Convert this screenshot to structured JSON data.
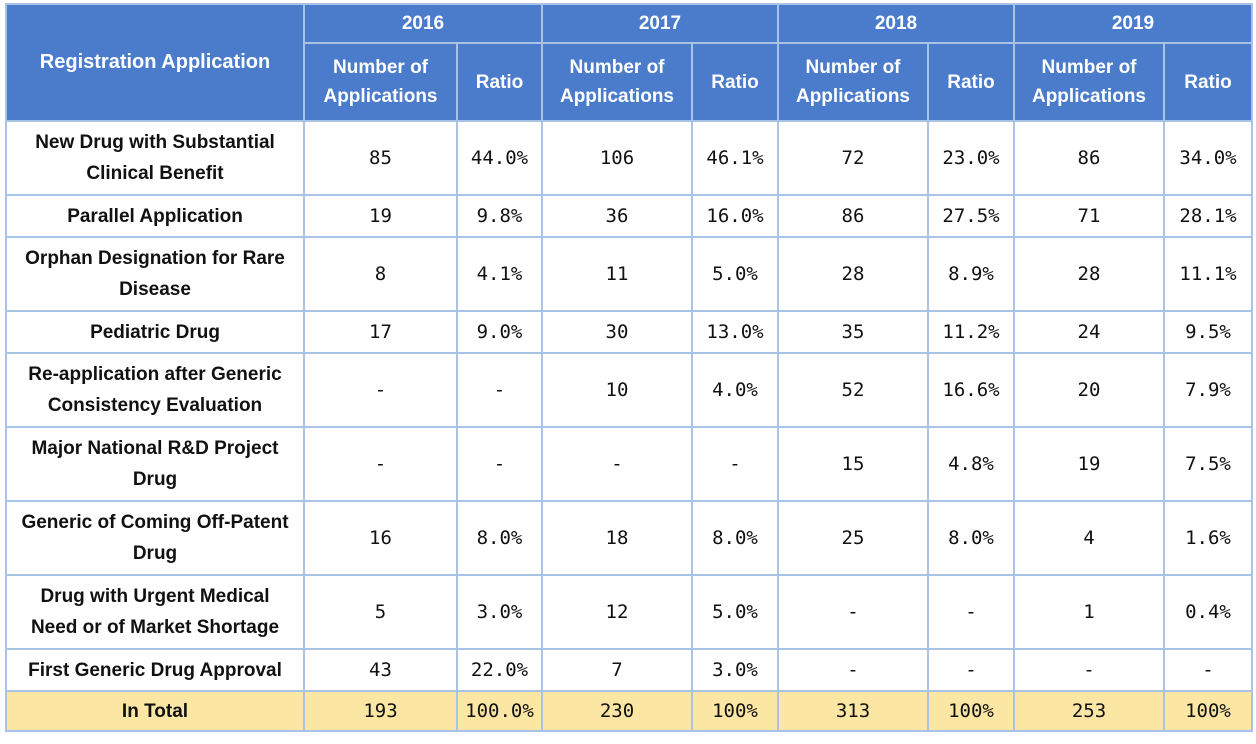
{
  "header": {
    "row_header": "Registration Application",
    "years": [
      "2016",
      "2017",
      "2018",
      "2019"
    ],
    "count_label_line1": "Number of",
    "count_label_line2": "Applications",
    "ratio_label": "Ratio"
  },
  "rows": [
    {
      "label_line1": "New Drug with Substantial",
      "label_line2": "Clinical Benefit",
      "cells": [
        "85",
        "44.0%",
        "106",
        "46.1%",
        "72",
        "23.0%",
        "86",
        "34.0%"
      ]
    },
    {
      "label_line1": "Parallel Application",
      "label_line2": "",
      "cells": [
        "19",
        "9.8%",
        "36",
        "16.0%",
        "86",
        "27.5%",
        "71",
        "28.1%"
      ]
    },
    {
      "label_line1": "Orphan Designation for Rare",
      "label_line2": "Disease",
      "cells": [
        "8",
        "4.1%",
        "11",
        "5.0%",
        "28",
        "8.9%",
        "28",
        "11.1%"
      ]
    },
    {
      "label_line1": "Pediatric Drug",
      "label_line2": "",
      "cells": [
        "17",
        "9.0%",
        "30",
        "13.0%",
        "35",
        "11.2%",
        "24",
        "9.5%"
      ]
    },
    {
      "label_line1": "Re-application after Generic",
      "label_line2": "Consistency Evaluation",
      "cells": [
        "-",
        "-",
        "10",
        "4.0%",
        "52",
        "16.6%",
        "20",
        "7.9%"
      ]
    },
    {
      "label_line1": "Major National R&D Project",
      "label_line2": "Drug",
      "cells": [
        "-",
        "-",
        "-",
        "-",
        "15",
        "4.8%",
        "19",
        "7.5%"
      ]
    },
    {
      "label_line1": "Generic of Coming Off-Patent",
      "label_line2": "Drug",
      "cells": [
        "16",
        "8.0%",
        "18",
        "8.0%",
        "25",
        "8.0%",
        "4",
        "1.6%"
      ]
    },
    {
      "label_line1": "Drug with Urgent Medical",
      "label_line2": "Need or of Market Shortage",
      "cells": [
        "5",
        "3.0%",
        "12",
        "5.0%",
        "-",
        "-",
        "1",
        "0.4%"
      ]
    },
    {
      "label_line1": "First Generic Drug Approval",
      "label_line2": "",
      "cells": [
        "43",
        "22.0%",
        "7",
        "3.0%",
        "-",
        "-",
        "-",
        "-"
      ]
    }
  ],
  "total": {
    "label": "In Total",
    "cells": [
      "193",
      "100.0%",
      "230",
      "100%",
      "313",
      "100%",
      "253",
      "100%"
    ]
  },
  "colors": {
    "header_bg": "#4b7ccb",
    "border": "#a9c2e5",
    "total_bg": "#fbe6a4"
  }
}
